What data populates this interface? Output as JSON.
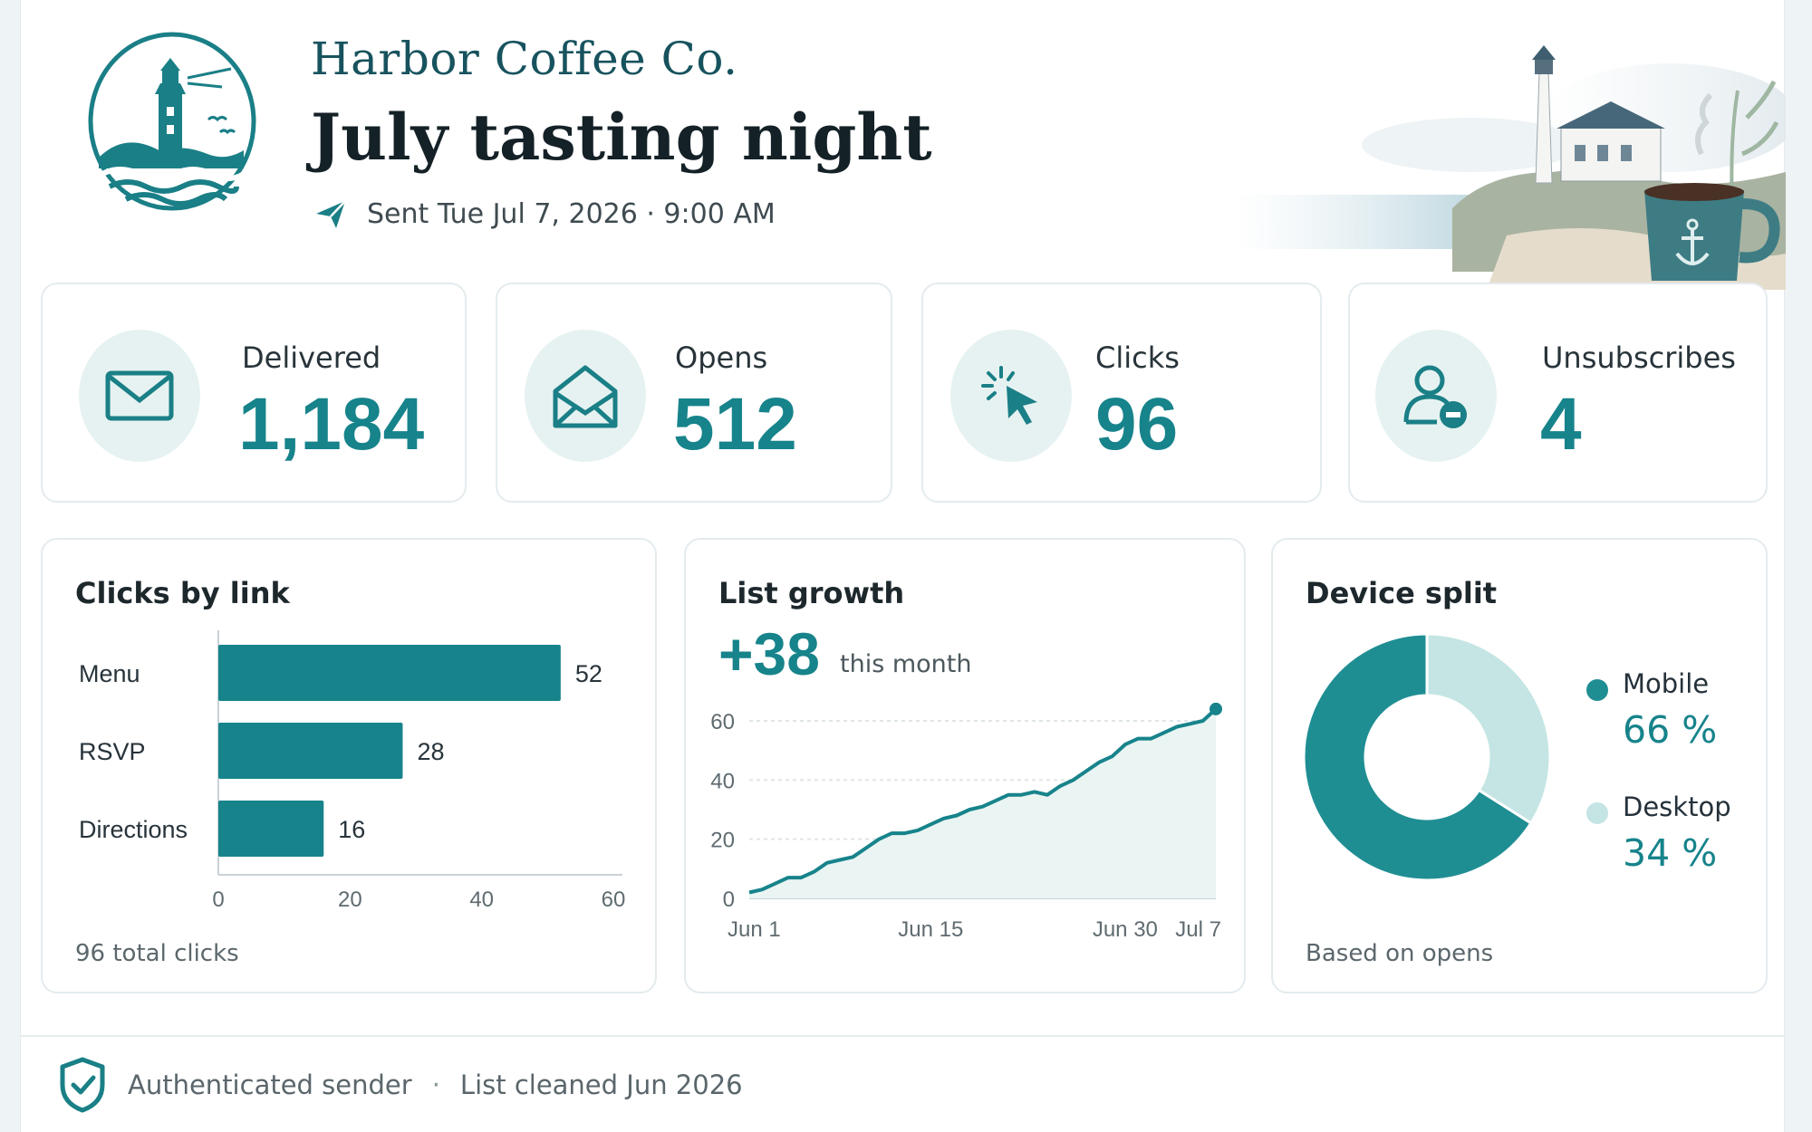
{
  "header": {
    "brand": "Harbor Coffee Co.",
    "title": "July tasting night",
    "sent": "Sent Tue Jul 7, 2026 · 9:00 AM",
    "icons": {
      "logo": "lighthouse-logo",
      "sent": "paper-plane-icon",
      "illustration": "lighthouse-coast-coffee-mug-illustration"
    }
  },
  "kpis": [
    {
      "label": "Delivered",
      "value": "1,184",
      "icon": "envelope-icon"
    },
    {
      "label": "Opens",
      "value": "512",
      "icon": "open-envelope-icon"
    },
    {
      "label": "Clicks",
      "value": "96",
      "icon": "cursor-click-icon"
    },
    {
      "label": "Unsubscribes",
      "value": "4",
      "icon": "user-minus-icon"
    }
  ],
  "panels": {
    "clicks": {
      "title": "Clicks  by link",
      "footer": "96 total clicks"
    },
    "growth": {
      "title": "List growth",
      "big_value": "+38",
      "subtitle": "this month"
    },
    "devices": {
      "title": "Device split",
      "footer": "Based on opens"
    }
  },
  "colors": {
    "accent": "#17838b",
    "accent_light": "#bfe2e1",
    "card_border": "#e4ebee"
  },
  "chart_data": [
    {
      "type": "bar",
      "orientation": "horizontal",
      "title": "Clicks  by link",
      "categories": [
        "Menu",
        "RSVP",
        "Directions"
      ],
      "values": [
        52,
        28,
        16
      ],
      "xlim": [
        0,
        60
      ],
      "xticks": [
        "0",
        "20",
        "40",
        "60"
      ],
      "grid": false
    },
    {
      "type": "area",
      "title": "List growth",
      "x": [
        "Jun 1",
        "Jun 2",
        "Jun 3",
        "Jun 4",
        "Jun 5",
        "Jun 6",
        "Jun 7",
        "Jun 8",
        "Jun 9",
        "Jun 10",
        "Jun 11",
        "Jun 12",
        "Jun 13",
        "Jun 14",
        "Jun 15",
        "Jun 16",
        "Jun 17",
        "Jun 18",
        "Jun 19",
        "Jun 20",
        "Jun 21",
        "Jun 22",
        "Jun 23",
        "Jun 24",
        "Jun 25",
        "Jun 26",
        "Jun 27",
        "Jun 28",
        "Jun 29",
        "Jun 30",
        "Jul 1",
        "Jul 2",
        "Jul 3",
        "Jul 4",
        "Jul 5",
        "Jul 6",
        "Jul 7"
      ],
      "values": [
        2,
        3,
        5,
        7,
        7,
        9,
        12,
        13,
        14,
        17,
        20,
        22,
        22,
        23,
        25,
        27,
        28,
        30,
        31,
        33,
        35,
        35,
        36,
        35,
        38,
        40,
        43,
        46,
        48,
        52,
        54,
        54,
        56,
        58,
        59,
        60,
        64
      ],
      "xticks": [
        "Jun 1",
        "Jun 15",
        "Jun 30",
        "Jul 7"
      ],
      "ylim": [
        0,
        60
      ],
      "yticks": [
        "0",
        "20",
        "40",
        "60"
      ],
      "grid": true
    },
    {
      "type": "pie",
      "title": "Device split",
      "donut": true,
      "categories": [
        "Mobile",
        "Desktop"
      ],
      "values": [
        66,
        34
      ],
      "labels": [
        "66 %",
        "34 %"
      ],
      "colors": [
        "#1f8e93",
        "#c4e5e3"
      ],
      "legend": "right"
    }
  ],
  "footer": {
    "auth": "Authenticated sender",
    "separator": "·",
    "cleaned": "List cleaned Jun 2026",
    "icon": "shield-check-icon"
  }
}
